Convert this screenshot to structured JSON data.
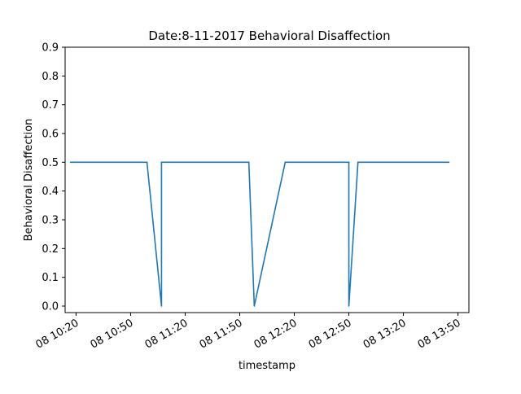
{
  "chart_data": {
    "type": "line",
    "title": "Date:8-11-2017 Behavioral Disaffection",
    "xlabel": "timestamp",
    "ylabel": "Behavioral Disaffection",
    "ylim": [
      0.0,
      0.9
    ],
    "yticks": [
      0.0,
      0.1,
      0.2,
      0.3,
      0.4,
      0.5,
      0.6,
      0.7,
      0.8,
      0.9
    ],
    "ytick_labels": [
      "0.0",
      "0.1",
      "0.2",
      "0.3",
      "0.4",
      "0.5",
      "0.6",
      "0.7",
      "0.8",
      "0.9"
    ],
    "xlim": [
      "2017-08-08 10:14",
      "2017-08-08 13:56"
    ],
    "xticks": [
      "2017-08-08 10:20",
      "2017-08-08 10:50",
      "2017-08-08 11:20",
      "2017-08-08 11:50",
      "2017-08-08 12:20",
      "2017-08-08 12:50",
      "2017-08-08 13:20",
      "2017-08-08 13:50"
    ],
    "xtick_labels": [
      "08 10:20",
      "08 10:50",
      "08 11:20",
      "08 11:50",
      "08 12:20",
      "08 12:50",
      "08 13:20",
      "08 13:50"
    ],
    "grid": false,
    "series": [
      {
        "color": "#1f77b4",
        "x": [
          "2017-08-08 10:17",
          "2017-08-08 10:59",
          "2017-08-08 11:07",
          "2017-08-08 11:07",
          "2017-08-08 11:55",
          "2017-08-08 11:58",
          "2017-08-08 12:15",
          "2017-08-08 12:50",
          "2017-08-08 12:50",
          "2017-08-08 12:55",
          "2017-08-08 13:45"
        ],
        "y": [
          0.5,
          0.5,
          0.0,
          0.5,
          0.5,
          0.0,
          0.5,
          0.5,
          0.0,
          0.5,
          0.5
        ]
      }
    ]
  }
}
